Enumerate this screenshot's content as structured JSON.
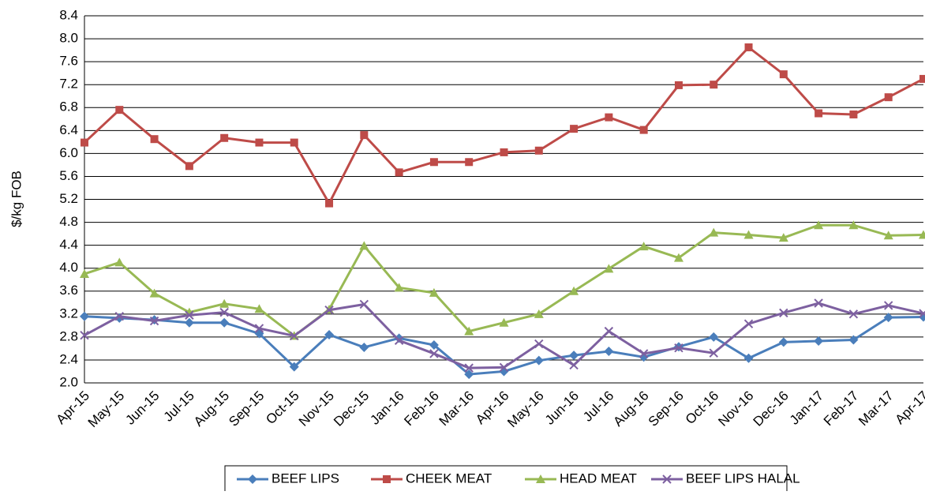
{
  "chart_data": {
    "type": "line",
    "y_label": "$/kg FOB",
    "categories": [
      "Apr-15",
      "May-15",
      "Jun-15",
      "Jul-15",
      "Aug-15",
      "Sep-15",
      "Oct-15",
      "Nov-15",
      "Dec-15",
      "Jan-16",
      "Feb-16",
      "Mar-16",
      "Apr-16",
      "May-16",
      "Jun-16",
      "Jul-16",
      "Aug-16",
      "Sep-16",
      "Oct-16",
      "Nov-16",
      "Dec-16",
      "Jan-17",
      "Feb-17",
      "Mar-17",
      "Apr-17"
    ],
    "series": [
      {
        "name": "BEEF LIPS",
        "color": "#4a7ebb",
        "marker": "diamond",
        "values": [
          3.16,
          3.13,
          3.1,
          3.05,
          3.05,
          2.86,
          2.28,
          2.84,
          2.62,
          2.78,
          2.66,
          2.15,
          2.2,
          2.39,
          2.48,
          2.55,
          2.45,
          2.63,
          2.8,
          2.43,
          2.71,
          2.73,
          2.75,
          3.14,
          3.15
        ]
      },
      {
        "name": "CHEEK MEAT",
        "color": "#be4b48",
        "marker": "square",
        "values": [
          6.19,
          6.76,
          6.25,
          5.78,
          6.27,
          6.19,
          6.19,
          5.13,
          6.32,
          5.67,
          5.85,
          5.85,
          6.02,
          6.05,
          6.43,
          6.63,
          6.41,
          7.19,
          7.2,
          7.85,
          7.38,
          6.7,
          6.68,
          6.98,
          7.3
        ]
      },
      {
        "name": "HEAD MEAT",
        "color": "#98b954",
        "marker": "triangle",
        "values": [
          3.9,
          4.1,
          3.56,
          3.23,
          3.38,
          3.29,
          2.82,
          3.28,
          4.39,
          3.66,
          3.57,
          2.9,
          3.05,
          3.2,
          3.6,
          3.99,
          4.38,
          4.18,
          4.62,
          4.58,
          4.53,
          4.75,
          4.75,
          4.57,
          4.58
        ]
      },
      {
        "name": "BEEF LIPS HALAL",
        "color": "#7d60a0",
        "marker": "x",
        "values": [
          2.83,
          3.16,
          3.08,
          3.18,
          3.23,
          2.95,
          2.82,
          3.27,
          3.37,
          2.74,
          2.51,
          2.26,
          2.27,
          2.68,
          2.31,
          2.9,
          2.51,
          2.61,
          2.52,
          3.03,
          3.22,
          3.39,
          3.2,
          3.35,
          3.21
        ]
      }
    ],
    "ylim": [
      2.0,
      8.4
    ],
    "yticks": [
      {
        "value": 2.0,
        "label": "2.0"
      },
      {
        "value": 2.4,
        "label": "2.4"
      },
      {
        "value": 2.8,
        "label": "2.8"
      },
      {
        "value": 3.2,
        "label": "3.2"
      },
      {
        "value": 3.6,
        "label": "3.6"
      },
      {
        "value": 4.0,
        "label": "4.0"
      },
      {
        "value": 4.4,
        "label": "4.4"
      },
      {
        "value": 4.8,
        "label": "4.8"
      },
      {
        "value": 5.2,
        "label": "5.2"
      },
      {
        "value": 5.6,
        "label": "5.6"
      },
      {
        "value": 6.0,
        "label": "6.0"
      },
      {
        "value": 6.4,
        "label": "6.4"
      },
      {
        "value": 6.8,
        "label": "6.8"
      },
      {
        "value": 7.2,
        "label": "7.2"
      },
      {
        "value": 7.6,
        "label": "7.6"
      },
      {
        "value": 8.0,
        "label": "8.0"
      },
      {
        "value": 8.4,
        "label": "8.4"
      }
    ],
    "grid": true,
    "legend": "bottom"
  }
}
